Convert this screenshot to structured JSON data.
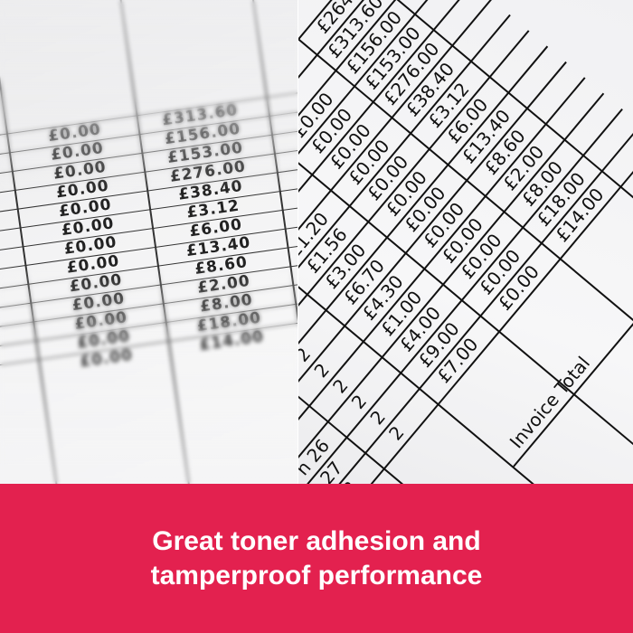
{
  "colors": {
    "banner": "#e3214f",
    "banner_text": "#ffffff"
  },
  "banner": {
    "line1": "Great toner adhesion and",
    "line2": "tamperproof performance"
  },
  "right_table": {
    "rows": [
      {
        "label": "",
        "qty": "",
        "unit": "",
        "vat": "",
        "total": "£264."
      },
      {
        "label": "",
        "qty": "",
        "unit": "",
        "vat": "",
        "total": "£313.60"
      },
      {
        "label": "",
        "qty": "",
        "unit": "",
        "vat": "£0.00",
        "total": "£156.00"
      },
      {
        "label": "",
        "qty": "",
        "unit": "",
        "vat": "£0.00",
        "total": "£153.00"
      },
      {
        "label": "",
        "qty": "",
        "unit": "",
        "vat": "£0.00",
        "total": "£276.00"
      },
      {
        "label": "",
        "qty": "",
        "unit": "£1.20",
        "vat": "£0.00",
        "total": "£38.40"
      },
      {
        "label": "",
        "qty": "",
        "unit": "£1.56",
        "vat": "£0.00",
        "total": "£3.12"
      },
      {
        "label": "",
        "qty": "",
        "unit": "£3.00",
        "vat": "£0.00",
        "total": "£6.00"
      },
      {
        "label": "",
        "qty": "2",
        "unit": "£6.70",
        "vat": "£0.00",
        "total": "£13.40"
      },
      {
        "label": "",
        "qty": "2",
        "unit": "£4.30",
        "vat": "£0.00",
        "total": "£8.60"
      },
      {
        "label": "",
        "qty": "2",
        "unit": "£1.00",
        "vat": "£0.00",
        "total": "£2.00"
      },
      {
        "label": "n 26",
        "qty": "2",
        "unit": "£4.00",
        "vat": "£0.00",
        "total": "£8.00"
      },
      {
        "label": "27",
        "qty": "2",
        "unit": "£9.00",
        "vat": "£0.00",
        "total": "£18.00"
      },
      {
        "label": "8",
        "qty": "2",
        "unit": "£7.00",
        "vat": "£0.00",
        "total": "£14.00"
      }
    ],
    "invoice_total_label": "Invoice Total"
  },
  "left_table": {
    "rows": [
      {
        "vat": "£0.00",
        "total": "£313.60"
      },
      {
        "vat": "£0.00",
        "total": "£156.00"
      },
      {
        "vat": "£0.00",
        "total": "£153.00"
      },
      {
        "vat": "£0.00",
        "total": "£276.00"
      },
      {
        "vat": "£0.00",
        "total": "£38.40"
      },
      {
        "vat": "£0.00",
        "total": "£3.12"
      },
      {
        "vat": "£0.00",
        "total": "£6.00"
      },
      {
        "vat": "£0.00",
        "total": "£13.40"
      },
      {
        "vat": "£0.00",
        "total": "£8.60"
      },
      {
        "vat": "£0.00",
        "total": "£2.00"
      },
      {
        "vat": "£0.00",
        "total": "£8.00"
      },
      {
        "vat": "£0.00",
        "total": "£18.00"
      },
      {
        "vat": "£0.00",
        "total": "£14.00"
      }
    ]
  }
}
